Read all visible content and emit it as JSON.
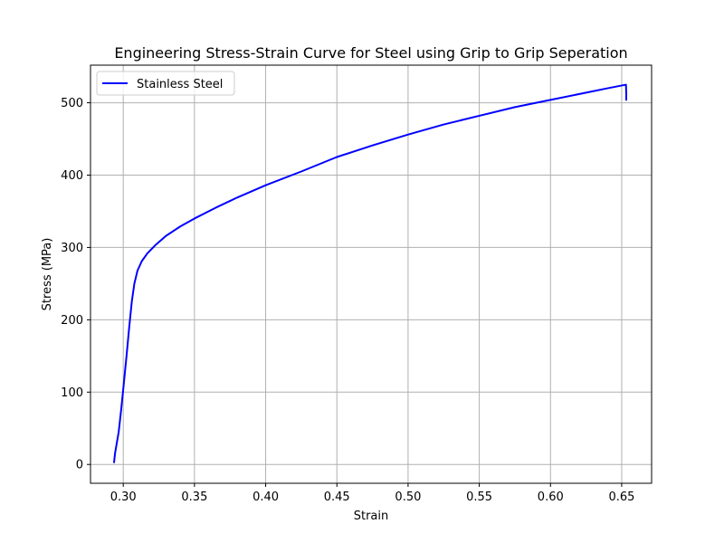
{
  "chart_data": {
    "type": "line",
    "title": "Engineering Stress-Strain Curve for Steel using Grip to Grip Seperation",
    "xlabel": "Strain",
    "ylabel": "Stress (MPa)",
    "xlim": [
      0.277,
      0.671
    ],
    "ylim": [
      -26,
      552
    ],
    "x_ticks": [
      {
        "value": 0.3,
        "label": "0.30"
      },
      {
        "value": 0.35,
        "label": "0.35"
      },
      {
        "value": 0.4,
        "label": "0.40"
      },
      {
        "value": 0.45,
        "label": "0.45"
      },
      {
        "value": 0.5,
        "label": "0.50"
      },
      {
        "value": 0.55,
        "label": "0.55"
      },
      {
        "value": 0.6,
        "label": "0.60"
      },
      {
        "value": 0.65,
        "label": "0.65"
      }
    ],
    "y_ticks": [
      {
        "value": 0,
        "label": "0"
      },
      {
        "value": 100,
        "label": "100"
      },
      {
        "value": 200,
        "label": "200"
      },
      {
        "value": 300,
        "label": "300"
      },
      {
        "value": 400,
        "label": "400"
      },
      {
        "value": 500,
        "label": "500"
      }
    ],
    "grid": true,
    "legend_position": "upper-left",
    "series": [
      {
        "name": "Stainless Steel",
        "color": "#0000ff",
        "points": [
          [
            0.2935,
            2
          ],
          [
            0.2942,
            15
          ],
          [
            0.2955,
            30
          ],
          [
            0.2968,
            45
          ],
          [
            0.2985,
            75
          ],
          [
            0.3003,
            110
          ],
          [
            0.3023,
            150
          ],
          [
            0.3042,
            190
          ],
          [
            0.306,
            225
          ],
          [
            0.3078,
            250
          ],
          [
            0.31,
            268
          ],
          [
            0.313,
            281
          ],
          [
            0.317,
            292
          ],
          [
            0.323,
            304
          ],
          [
            0.33,
            316
          ],
          [
            0.34,
            329
          ],
          [
            0.35,
            340
          ],
          [
            0.365,
            355
          ],
          [
            0.38,
            369
          ],
          [
            0.4,
            386
          ],
          [
            0.425,
            405
          ],
          [
            0.45,
            425
          ],
          [
            0.475,
            441
          ],
          [
            0.5,
            456
          ],
          [
            0.525,
            470
          ],
          [
            0.55,
            482
          ],
          [
            0.575,
            494
          ],
          [
            0.6,
            504
          ],
          [
            0.625,
            514
          ],
          [
            0.64,
            520
          ],
          [
            0.653,
            525
          ],
          [
            0.6532,
            513
          ],
          [
            0.6532,
            503
          ]
        ]
      }
    ]
  }
}
